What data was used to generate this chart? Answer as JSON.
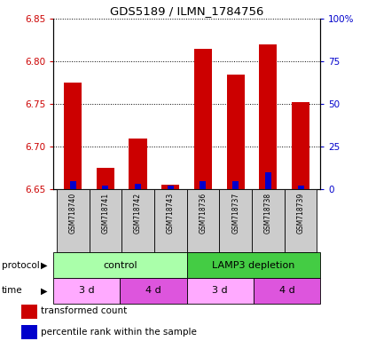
{
  "title": "GDS5189 / ILMN_1784756",
  "samples": [
    "GSM718740",
    "GSM718741",
    "GSM718742",
    "GSM718743",
    "GSM718736",
    "GSM718737",
    "GSM718738",
    "GSM718739"
  ],
  "transformed_count": [
    6.775,
    6.675,
    6.71,
    6.655,
    6.815,
    6.785,
    6.82,
    6.752
  ],
  "percentile_rank": [
    5,
    2,
    3,
    2,
    5,
    5,
    10,
    2
  ],
  "baseline": 6.65,
  "ylim_left": [
    6.65,
    6.85
  ],
  "ylim_right": [
    0,
    100
  ],
  "yticks_left": [
    6.65,
    6.7,
    6.75,
    6.8,
    6.85
  ],
  "yticks_right": [
    0,
    25,
    50,
    75,
    100
  ],
  "ytick_labels_right": [
    "0",
    "25",
    "50",
    "75",
    "100%"
  ],
  "bar_color_red": "#cc0000",
  "bar_color_blue": "#0000cc",
  "protocol_groups": [
    {
      "label": "control",
      "start": 0,
      "end": 4,
      "color": "#aaffaa"
    },
    {
      "label": "LAMP3 depletion",
      "start": 4,
      "end": 8,
      "color": "#44cc44"
    }
  ],
  "time_groups": [
    {
      "label": "3 d",
      "start": 0,
      "end": 2,
      "color": "#ffaaff"
    },
    {
      "label": "4 d",
      "start": 2,
      "end": 4,
      "color": "#dd55dd"
    },
    {
      "label": "3 d",
      "start": 4,
      "end": 6,
      "color": "#ffaaff"
    },
    {
      "label": "4 d",
      "start": 6,
      "end": 8,
      "color": "#dd55dd"
    }
  ],
  "legend_items": [
    {
      "label": "transformed count",
      "color": "#cc0000"
    },
    {
      "label": "percentile rank within the sample",
      "color": "#0000cc"
    }
  ],
  "sample_bg_color": "#cccccc",
  "left_axis_color": "#cc0000",
  "right_axis_color": "#0000cc"
}
